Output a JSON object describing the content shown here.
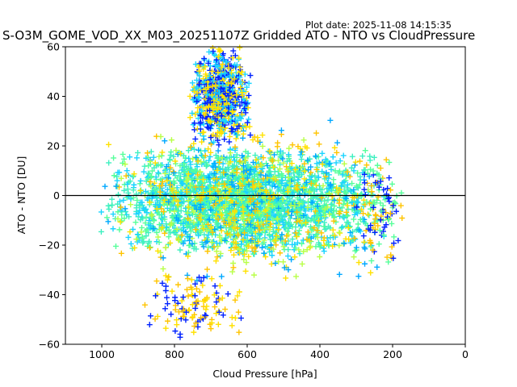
{
  "chart_data": {
    "type": "scatter",
    "title": "S-O3M_GOME_VOD_XX_M03_20251107Z Gridded ATO - NTO vs CloudPressure",
    "plot_date": "Plot date: 2025-11-08 14:15:35",
    "xlabel": "Cloud Pressure [hPa]",
    "ylabel": "ATO - NTO [DU]",
    "xlim": [
      1100,
      0
    ],
    "ylim": [
      -60,
      60
    ],
    "x_ticks": [
      1000,
      800,
      600,
      400,
      200,
      0
    ],
    "y_ticks": [
      60,
      40,
      20,
      0,
      -20,
      -40,
      -60
    ],
    "x_tick_labels": [
      "1000",
      "800",
      "600",
      "400",
      "200",
      "0"
    ],
    "y_tick_labels": [
      "60",
      "40",
      "20",
      "0",
      "−20",
      "−40",
      "−60"
    ],
    "x_axis_reversed": true,
    "grid": false,
    "marker": "+",
    "reference_line_y": 0,
    "colors": {
      "reference_line": "#000000",
      "points": [
        "#0000ff",
        "#0022ff",
        "#00a8ff",
        "#1ad4ff",
        "#3ef0c0",
        "#55ff9a",
        "#7dff7a",
        "#b8ff47",
        "#ffe100",
        "#ffc400",
        "#ffae00"
      ]
    },
    "clusters": [
      {
        "x_range": [
          1010,
          215
        ],
        "y_range": [
          -25,
          20
        ],
        "density": "very high",
        "colors": [
          "#3ef0c0",
          "#55ff9a",
          "#1ad4ff"
        ]
      },
      {
        "x_range": [
          1000,
          220
        ],
        "y_range": [
          -35,
          32
        ],
        "density": "medium",
        "colors": [
          "#ffe100",
          "#ffc400",
          "#b8ff47",
          "#00a8ff"
        ]
      },
      {
        "x_range": [
          760,
          585
        ],
        "y_range": [
          20,
          60
        ],
        "density": "medium",
        "colors": [
          "#0022ff",
          "#1ad4ff",
          "#ffe100"
        ]
      },
      {
        "x_range": [
          900,
          600
        ],
        "y_range": [
          -60,
          -30
        ],
        "density": "low",
        "colors": [
          "#0022ff",
          "#ffe100",
          "#ffc400"
        ]
      },
      {
        "x_range": [
          300,
          160
        ],
        "y_range": [
          -30,
          20
        ],
        "density": "low",
        "colors": [
          "#0022ff",
          "#ffc400",
          "#55ff9a"
        ]
      }
    ]
  }
}
